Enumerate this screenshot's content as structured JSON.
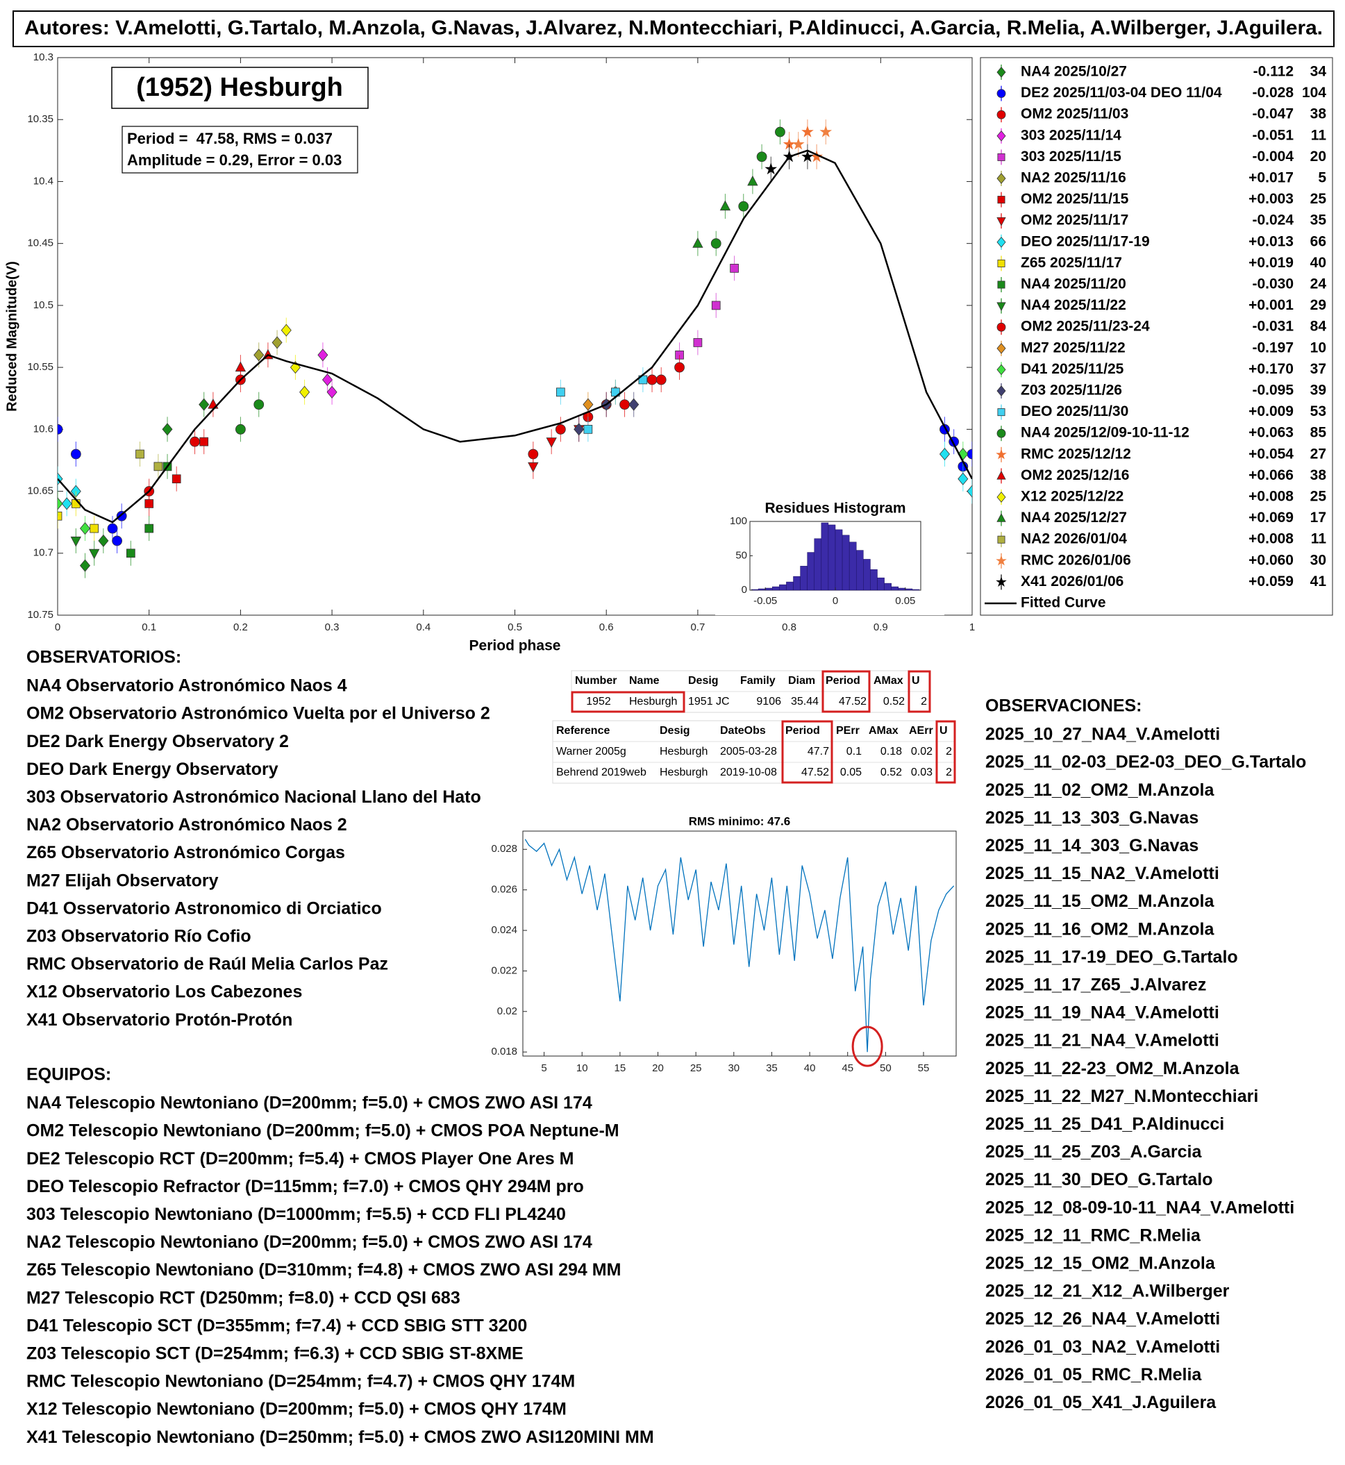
{
  "header": {
    "authors": "Autores: V.Amelotti, G.Tartalo, M.Anzola, G.Navas, J.Alvarez, N.Montecchiari, P.Aldinucci, A.Garcia, R.Melia, A.Wilberger, J.Aguilera."
  },
  "chart_data": [
    {
      "type": "scatter",
      "title": "(1952) Hesburgh",
      "annotations": [
        "Period =  47.58, RMS = 0.037",
        "Amplitude = 0.29, Error = 0.03"
      ],
      "xlabel": "Period phase",
      "ylabel": "Reduced Magnitude(V)",
      "xlim": [
        0,
        1
      ],
      "ylim": [
        10.3,
        10.75
      ],
      "y_inverted": true,
      "xticks": [
        0,
        0.1,
        0.2,
        0.3,
        0.4,
        0.5,
        0.6,
        0.7,
        0.8,
        0.9,
        1
      ],
      "yticks": [
        10.3,
        10.35,
        10.4,
        10.45,
        10.5,
        10.55,
        10.6,
        10.65,
        10.7,
        10.75
      ],
      "series": [
        {
          "name": "NA4 2025/10/27",
          "offset": "-0.112",
          "count": 34,
          "color": "#1a8a1a",
          "marker": "diamond",
          "x": [
            0.03,
            0.05,
            0.12,
            0.16
          ],
          "y": [
            10.71,
            10.69,
            10.6,
            10.58
          ]
        },
        {
          "name": "DE2 2025/11/03-04 DEO 11/04",
          "offset": "-0.028",
          "count": 104,
          "color": "#0000ff",
          "marker": "circle",
          "x": [
            0.0,
            0.02,
            0.06,
            0.065,
            0.07,
            0.97,
            0.98,
            0.99,
            1.0
          ],
          "y": [
            10.6,
            10.62,
            10.68,
            10.69,
            10.67,
            10.6,
            10.61,
            10.63,
            10.62
          ]
        },
        {
          "name": "OM2 2025/11/03",
          "offset": "-0.047",
          "count": 38,
          "color": "#e00000",
          "marker": "circle",
          "x": [
            0.52,
            0.55,
            0.58,
            0.62,
            0.65
          ],
          "y": [
            10.62,
            10.6,
            10.59,
            10.58,
            10.56
          ]
        },
        {
          "name": "303 2025/11/14",
          "offset": "-0.051",
          "count": 11,
          "color": "#e020e0",
          "marker": "diamond",
          "x": [
            0.29,
            0.295,
            0.3
          ],
          "y": [
            10.54,
            10.56,
            10.57
          ]
        },
        {
          "name": "303 2025/11/15",
          "offset": "-0.004",
          "count": 20,
          "color": "#d030d0",
          "marker": "square",
          "x": [
            0.68,
            0.7,
            0.72,
            0.74
          ],
          "y": [
            10.54,
            10.53,
            10.5,
            10.47
          ]
        },
        {
          "name": "NA2 2025/11/16",
          "offset": "+0.017",
          "count": 5,
          "color": "#a0a030",
          "marker": "diamond",
          "x": [
            0.22,
            0.24
          ],
          "y": [
            10.54,
            10.53
          ]
        },
        {
          "name": "OM2 2025/11/15",
          "offset": "+0.003",
          "count": 25,
          "color": "#e00000",
          "marker": "square",
          "x": [
            0.1,
            0.13,
            0.16
          ],
          "y": [
            10.66,
            10.64,
            10.61
          ]
        },
        {
          "name": "OM2 2025/11/17",
          "offset": "-0.024",
          "count": 35,
          "color": "#e00000",
          "marker": "triangle-down",
          "x": [
            0.52,
            0.54,
            0.57
          ],
          "y": [
            10.63,
            10.61,
            10.6
          ]
        },
        {
          "name": "DEO 2025/11/17-19",
          "offset": "+0.013",
          "count": 66,
          "color": "#20e0f0",
          "marker": "diamond",
          "x": [
            0.0,
            0.01,
            0.02,
            0.97,
            0.99,
            1.0
          ],
          "y": [
            10.64,
            10.66,
            10.65,
            10.62,
            10.64,
            10.65
          ]
        },
        {
          "name": "Z65 2025/11/17",
          "offset": "+0.019",
          "count": 40,
          "color": "#f0e000",
          "marker": "square",
          "x": [
            0.0,
            0.02,
            0.04
          ],
          "y": [
            10.67,
            10.66,
            10.68
          ]
        },
        {
          "name": "NA4 2025/11/20",
          "offset": "-0.030",
          "count": 24,
          "color": "#1a8a1a",
          "marker": "square",
          "x": [
            0.08,
            0.1,
            0.12
          ],
          "y": [
            10.7,
            10.68,
            10.63
          ]
        },
        {
          "name": "NA4 2025/11/22",
          "offset": "+0.001",
          "count": 29,
          "color": "#1a8a1a",
          "marker": "triangle-down",
          "x": [
            0.02,
            0.04
          ],
          "y": [
            10.69,
            10.7
          ]
        },
        {
          "name": "OM2 2025/11/23-24",
          "offset": "-0.031",
          "count": 84,
          "color": "#e00000",
          "marker": "circle",
          "x": [
            0.1,
            0.15,
            0.2,
            0.6,
            0.66,
            0.68
          ],
          "y": [
            10.65,
            10.61,
            10.56,
            10.58,
            10.56,
            10.55
          ]
        },
        {
          "name": "M27 2025/11/22",
          "offset": "-0.197",
          "count": 10,
          "color": "#e09020",
          "marker": "diamond",
          "x": [
            0.58,
            0.61
          ],
          "y": [
            10.58,
            10.57
          ]
        },
        {
          "name": "D41 2025/11/25",
          "offset": "+0.170",
          "count": 37,
          "color": "#40e040",
          "marker": "diamond",
          "x": [
            0.0,
            0.03,
            0.99
          ],
          "y": [
            10.66,
            10.68,
            10.62
          ]
        },
        {
          "name": "Z03 2025/11/26",
          "offset": "-0.095",
          "count": 39,
          "color": "#404070",
          "marker": "diamond",
          "x": [
            0.57,
            0.6,
            0.63
          ],
          "y": [
            10.6,
            10.58,
            10.58
          ]
        },
        {
          "name": "DEO 2025/11/30",
          "offset": "+0.009",
          "count": 53,
          "color": "#40d0f0",
          "marker": "square",
          "x": [
            0.55,
            0.58,
            0.61,
            0.64
          ],
          "y": [
            10.57,
            10.6,
            10.57,
            10.56
          ]
        },
        {
          "name": "NA4 2025/12/09-10-11-12",
          "offset": "+0.063",
          "count": 85,
          "color": "#1a8a1a",
          "marker": "circle",
          "x": [
            0.2,
            0.22,
            0.72,
            0.75,
            0.77,
            0.79
          ],
          "y": [
            10.6,
            10.58,
            10.45,
            10.42,
            10.38,
            10.36
          ]
        },
        {
          "name": "RMC 2025/12/12",
          "offset": "+0.054",
          "count": 27,
          "color": "#f07030",
          "marker": "star",
          "x": [
            0.8,
            0.82,
            0.83
          ],
          "y": [
            10.37,
            10.36,
            10.38
          ]
        },
        {
          "name": "OM2 2025/12/16",
          "offset": "+0.066",
          "count": 38,
          "color": "#e00000",
          "marker": "triangle",
          "x": [
            0.17,
            0.2,
            0.23
          ],
          "y": [
            10.58,
            10.55,
            10.54
          ]
        },
        {
          "name": "X12 2025/12/22",
          "offset": "+0.008",
          "count": 25,
          "color": "#f0f000",
          "marker": "diamond",
          "x": [
            0.25,
            0.26,
            0.27
          ],
          "y": [
            10.52,
            10.55,
            10.57
          ]
        },
        {
          "name": "NA4 2025/12/27",
          "offset": "+0.069",
          "count": 17,
          "color": "#1a8a1a",
          "marker": "triangle",
          "x": [
            0.7,
            0.73,
            0.76
          ],
          "y": [
            10.45,
            10.42,
            10.4
          ]
        },
        {
          "name": "NA2 2026/01/04",
          "offset": "+0.008",
          "count": 11,
          "color": "#b0b040",
          "marker": "square",
          "x": [
            0.09,
            0.11
          ],
          "y": [
            10.62,
            10.63
          ]
        },
        {
          "name": "RMC 2026/01/06",
          "offset": "+0.060",
          "count": 30,
          "color": "#f08040",
          "marker": "star",
          "x": [
            0.81,
            0.84
          ],
          "y": [
            10.37,
            10.36
          ]
        },
        {
          "name": "X41 2026/01/06",
          "offset": "+0.059",
          "count": 41,
          "color": "#000000",
          "marker": "star",
          "x": [
            0.78,
            0.8,
            0.82
          ],
          "y": [
            10.39,
            10.38,
            10.38
          ]
        }
      ],
      "fit": {
        "name": "Fitted Curve",
        "color": "#000000",
        "x": [
          0,
          0.03,
          0.06,
          0.1,
          0.15,
          0.2,
          0.23,
          0.25,
          0.3,
          0.35,
          0.4,
          0.44,
          0.5,
          0.55,
          0.6,
          0.65,
          0.7,
          0.75,
          0.8,
          0.82,
          0.85,
          0.9,
          0.95,
          1
        ],
        "y": [
          10.64,
          10.665,
          10.675,
          10.65,
          10.6,
          10.56,
          10.54,
          10.545,
          10.555,
          10.575,
          10.6,
          10.61,
          10.605,
          10.595,
          10.58,
          10.55,
          10.5,
          10.43,
          10.38,
          10.375,
          10.385,
          10.45,
          10.57,
          10.64
        ]
      }
    },
    {
      "type": "histogram",
      "title": "Residues Histogram",
      "color": "#3b2ba8",
      "bins": [
        -0.06,
        -0.055,
        -0.05,
        -0.045,
        -0.04,
        -0.035,
        -0.03,
        -0.025,
        -0.02,
        -0.015,
        -0.01,
        -0.005,
        0,
        0.005,
        0.01,
        0.015,
        0.02,
        0.025,
        0.03,
        0.035,
        0.04,
        0.045,
        0.05,
        0.055,
        0.06
      ],
      "counts": [
        1,
        2,
        3,
        5,
        8,
        12,
        20,
        35,
        55,
        75,
        98,
        95,
        88,
        80,
        70,
        58,
        45,
        30,
        18,
        10,
        5,
        3,
        2,
        1
      ],
      "xlim": [
        -0.061,
        0.061
      ],
      "ylim": [
        0,
        100
      ],
      "xticks": [
        -0.05,
        0,
        0.05
      ],
      "yticks": [
        0,
        50,
        100
      ]
    },
    {
      "type": "line",
      "title": "RMS minimo: 47.6",
      "color": "#0072bd",
      "x": [
        2.5,
        3,
        4,
        5,
        6,
        7,
        8,
        9,
        10,
        11,
        12,
        13,
        14,
        15,
        16,
        17,
        18,
        19,
        20,
        21,
        22,
        23,
        24,
        25,
        26,
        27,
        28,
        29,
        30,
        31,
        32,
        33,
        34,
        35,
        36,
        37,
        38,
        39,
        40,
        41,
        42,
        43,
        44,
        45,
        46,
        47,
        47.6,
        48,
        49,
        50,
        51,
        52,
        53,
        54,
        55,
        56,
        57,
        58,
        59
      ],
      "values": [
        0.0285,
        0.0282,
        0.0279,
        0.0283,
        0.0272,
        0.028,
        0.0265,
        0.0276,
        0.0258,
        0.0272,
        0.025,
        0.0268,
        0.0236,
        0.0205,
        0.0262,
        0.0245,
        0.0266,
        0.024,
        0.0262,
        0.027,
        0.0238,
        0.0276,
        0.0255,
        0.027,
        0.0232,
        0.0264,
        0.025,
        0.0273,
        0.0233,
        0.0262,
        0.0222,
        0.0258,
        0.024,
        0.0266,
        0.0228,
        0.0262,
        0.0225,
        0.0272,
        0.0258,
        0.0236,
        0.025,
        0.0226,
        0.0256,
        0.0276,
        0.021,
        0.0232,
        0.018,
        0.0216,
        0.0252,
        0.0264,
        0.0238,
        0.0256,
        0.023,
        0.0262,
        0.0203,
        0.0235,
        0.025,
        0.0258,
        0.0262
      ],
      "xlim": [
        2.2,
        59.3
      ],
      "ylim": [
        0.0178,
        0.0289
      ],
      "xticks": [
        5,
        10,
        15,
        20,
        25,
        30,
        35,
        40,
        45,
        50,
        55
      ],
      "yticks": [
        0.018,
        0.02,
        0.022,
        0.024,
        0.026,
        0.028
      ]
    }
  ],
  "tables": [
    {
      "header": [
        "Number",
        "Name",
        "Desig",
        "Family",
        "Diam",
        "Period",
        "AMax",
        "U"
      ],
      "rows": [
        [
          "1952",
          "Hesburgh",
          "1951 JC",
          "9106",
          "35.44",
          "47.52",
          "0.52",
          "2"
        ]
      ]
    },
    {
      "header": [
        "Reference",
        "Desig",
        "DateObs",
        "Period",
        "PErr",
        "AMax",
        "AErr",
        "U"
      ],
      "rows": [
        [
          "Warner 2005g",
          "Hesburgh",
          "2005-03-28",
          "47.7",
          "0.1",
          "0.18",
          "0.02",
          "2"
        ],
        [
          "Behrend 2019web",
          "Hesburgh",
          "2019-10-08",
          "47.52",
          "0.05",
          "0.52",
          "0.03",
          "2"
        ]
      ]
    }
  ],
  "observatorios": {
    "title": "OBSERVATORIOS:",
    "items": [
      "NA4 Observatorio Astronómico Naos 4",
      "OM2 Observatorio Astronómico Vuelta por el Universo 2",
      "DE2 Dark Energy Observatory 2",
      "DEO Dark Energy Observatory",
      "303 Observatorio Astronómico Nacional Llano del Hato",
      "NA2 Observatorio Astronómico Naos 2",
      "Z65 Observatorio Astronómico Corgas",
      "M27 Elijah Observatory",
      "D41 Osservatorio Astronomico di Orciatico",
      "Z03 Observatorio Río Cofio",
      "RMC Observatorio de Raúl Melia Carlos Paz",
      "X12 Observatorio Los Cabezones",
      "X41 Observatorio Protón-Protón"
    ]
  },
  "equipos": {
    "title": "EQUIPOS:",
    "items": [
      "NA4 Telescopio Newtoniano (D=200mm; f=5.0) + CMOS ZWO ASI 174",
      "OM2 Telescopio Newtoniano (D=200mm; f=5.0) + CMOS POA Neptune-M",
      "DE2 Telescopio RCT (D=200mm; f=5.4) + CMOS Player One Ares M",
      "DEO Telescopio Refractor (D=115mm; f=7.0) + CMOS QHY 294M pro",
      "303 Telescopio Newtoniano (D=1000mm; f=5.5) + CCD FLI PL4240",
      "NA2 Telescopio Newtoniano (D=200mm; f=5.0) + CMOS ZWO ASI 174",
      "Z65 Telescopio Newtoniano (D=310mm; f=4.8) + CMOS ZWO ASI 294 MM",
      "M27 Telescopio RCT (D250mm; f=8.0) + CCD QSI 683",
      "D41 Telescopio SCT (D=355mm; f=7.4) + CCD SBIG STT 3200",
      "Z03 Telescopio SCT (D=254mm; f=6.3) + CCD SBIG ST-8XME",
      "RMC Telescopio Newtoniano (D=254mm; f=4.7) + CMOS QHY 174M",
      "X12 Telescopio Newtoniano (D=200mm; f=5.0) + CMOS QHY 174M",
      "X41 Telescopio Newtoniano (D=250mm; f=5.0) + CMOS ZWO ASI120MINI MM"
    ]
  },
  "observaciones": {
    "title": "OBSERVACIONES:",
    "items": [
      "2025_10_27_NA4_V.Amelotti",
      "2025_11_02-03_DE2-03_DEO_G.Tartalo",
      "2025_11_02_OM2_M.Anzola",
      "2025_11_13_303_G.Navas",
      "2025_11_14_303_G.Navas",
      "2025_11_15_NA2_V.Amelotti",
      "2025_11_15_OM2_M.Anzola",
      "2025_11_16_OM2_M.Anzola",
      "2025_11_17-19_DEO_G.Tartalo",
      "2025_11_17_Z65_J.Alvarez",
      "2025_11_19_NA4_V.Amelotti",
      "2025_11_21_NA4_V.Amelotti",
      "2025_11_22-23_OM2_M.Anzola",
      "2025_11_22_M27_N.Montecchiari",
      "2025_11_25_D41_P.Aldinucci",
      "2025_11_25_Z03_A.Garcia",
      "2025_11_30_DEO_G.Tartalo",
      "2025_12_08-09-10-11_NA4_V.Amelotti",
      "2025_12_11_RMC_R.Melia",
      "2025_12_15_OM2_M.Anzola",
      "2025_12_21_X12_A.Wilberger",
      "2025_12_26_NA4_V.Amelotti",
      "2026_01_03_NA2_V.Amelotti",
      "2026_01_05_RMC_R.Melia",
      "2026_01_05_X41_J.Aguilera"
    ]
  }
}
